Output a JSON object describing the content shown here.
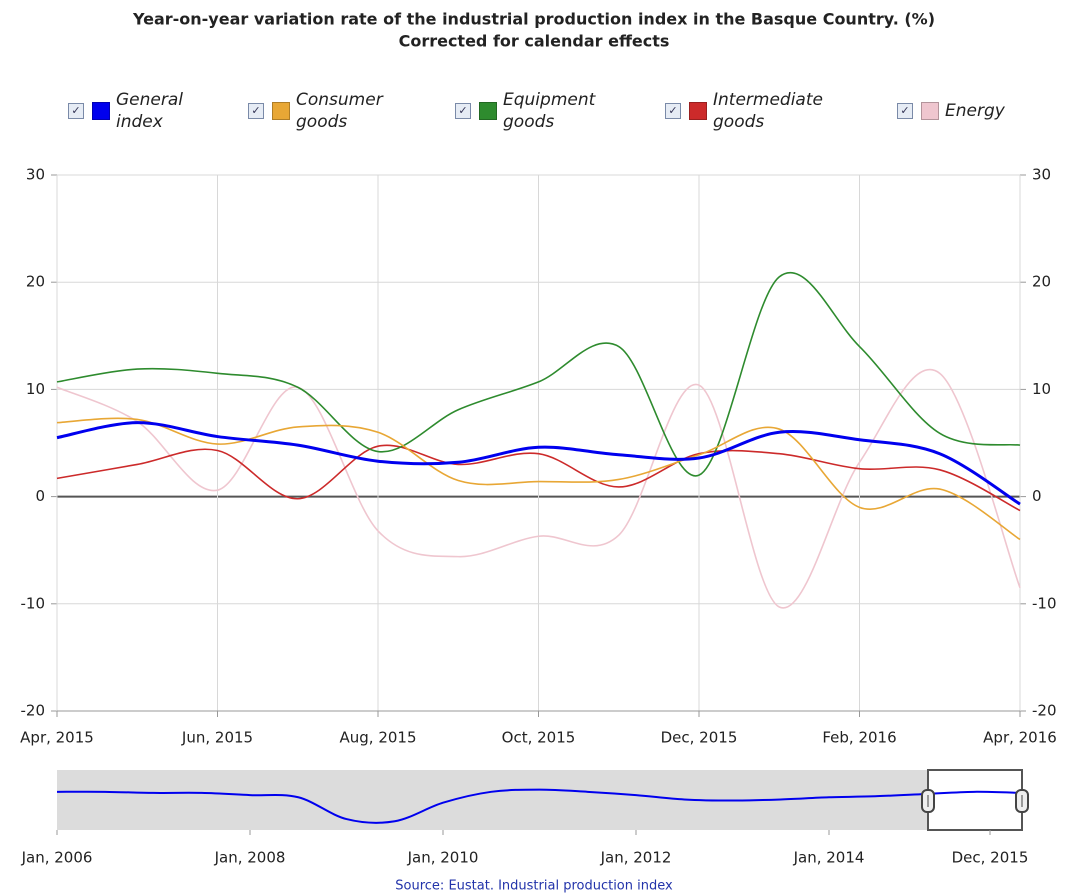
{
  "chart_data": {
    "type": "line",
    "title": "Year-on-year variation rate of the industrial production index in the Basque Country. (%)",
    "subtitle": "Corrected for calendar effects",
    "categories": [
      "Apr, 2015",
      null,
      "Jun, 2015",
      null,
      "Aug, 2015",
      null,
      "Oct, 2015",
      null,
      "Dec, 2015",
      null,
      "Feb, 2016",
      null,
      "Apr, 2016"
    ],
    "series": [
      {
        "name": "General index",
        "color": "#0000ee",
        "values": [
          5.5,
          6.9,
          5.6,
          4.8,
          3.3,
          3.2,
          4.6,
          3.9,
          3.6,
          6.0,
          5.3,
          4.0,
          -0.7
        ]
      },
      {
        "name": "Consumer goods",
        "color": "#e8a735",
        "values": [
          6.9,
          7.2,
          4.9,
          6.5,
          6.0,
          1.5,
          1.4,
          1.6,
          3.9,
          6.3,
          -1.0,
          0.7,
          -4.0
        ]
      },
      {
        "name": "Equipment goods",
        "color": "#2e8b2e",
        "values": [
          10.7,
          11.9,
          11.5,
          10.2,
          4.2,
          8.1,
          10.7,
          14.0,
          2.0,
          20.5,
          14.0,
          5.9,
          4.8
        ]
      },
      {
        "name": "Intermediate goods",
        "color": "#cc2a2a",
        "values": [
          1.7,
          3.0,
          4.3,
          -0.2,
          4.7,
          3.0,
          4.0,
          0.9,
          4.0,
          4.0,
          2.6,
          2.5,
          -1.3
        ]
      },
      {
        "name": "Energy",
        "color": "#efc6cf",
        "values": [
          10.2,
          7.0,
          0.6,
          10.2,
          -3.2,
          -5.6,
          -3.7,
          -3.6,
          10.4,
          -10.3,
          3.2,
          11.5,
          -8.5
        ]
      }
    ],
    "ylim": [
      -20,
      30
    ],
    "yticks": [
      -20,
      -10,
      0,
      10,
      20,
      30
    ],
    "grid": true,
    "navigator": {
      "categories": [
        "Jan, 2006",
        null,
        null,
        null,
        "Jan, 2008",
        null,
        null,
        null,
        "Jan, 2010",
        null,
        null,
        null,
        "Jan, 2012",
        null,
        null,
        null,
        "Jan, 2014",
        null,
        null,
        null,
        null
      ],
      "values": [
        5,
        5,
        4,
        4,
        2,
        0,
        -20,
        -22,
        -5,
        5,
        7,
        5,
        2,
        -2,
        -3,
        -2,
        0,
        1,
        3,
        5,
        4
      ],
      "ylim": [
        -30,
        25
      ],
      "range_end_label": "Dec, 2015"
    },
    "source": "Source: Eustat. Industrial production index"
  }
}
